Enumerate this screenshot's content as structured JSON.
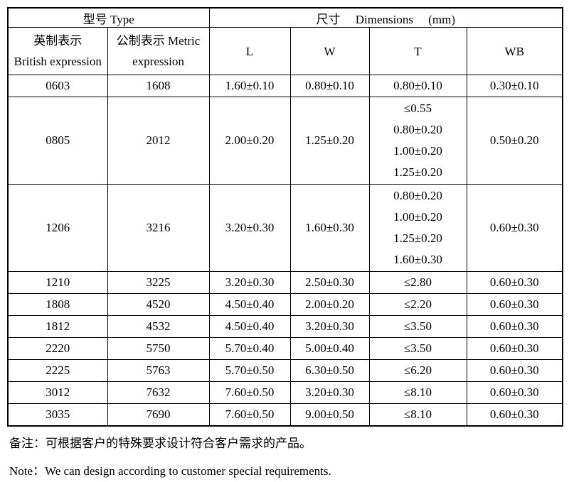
{
  "table": {
    "header": {
      "type_label": "型号 Type",
      "dimensions_label": "尺寸     Dimensions     (mm)",
      "col_british": "英制表示\nBritish expression",
      "col_metric": "公制表示 Metric\nexpression",
      "col_l": "L",
      "col_w": "W",
      "col_t": "T",
      "col_wb": "WB"
    },
    "rows": [
      {
        "british": "0603",
        "metric": "1608",
        "l": "1.60±0.10",
        "w": "0.80±0.10",
        "t": [
          "0.80±0.10"
        ],
        "wb": "0.30±0.10"
      },
      {
        "british": "0805",
        "metric": "2012",
        "l": "2.00±0.20",
        "w": "1.25±0.20",
        "t": [
          "≤0.55",
          "0.80±0.20",
          "1.00±0.20",
          "1.25±0.20"
        ],
        "wb": "0.50±0.20"
      },
      {
        "british": "1206",
        "metric": "3216",
        "l": "3.20±0.30",
        "w": "1.60±0.30",
        "t": [
          "0.80±0.20",
          "1.00±0.20",
          "1.25±0.20",
          "1.60±0.30"
        ],
        "wb": "0.60±0.30"
      },
      {
        "british": "1210",
        "metric": "3225",
        "l": "3.20±0.30",
        "w": "2.50±0.30",
        "t": [
          "≤2.80"
        ],
        "wb": "0.60±0.30"
      },
      {
        "british": "1808",
        "metric": "4520",
        "l": "4.50±0.40",
        "w": "2.00±0.20",
        "t": [
          "≤2.20"
        ],
        "wb": "0.60±0.30"
      },
      {
        "british": "1812",
        "metric": "4532",
        "l": "4.50±0.40",
        "w": "3.20±0.30",
        "t": [
          "≤3.50"
        ],
        "wb": "0.60±0.30"
      },
      {
        "british": "2220",
        "metric": "5750",
        "l": "5.70±0.40",
        "w": "5.00±0.40",
        "t": [
          "≤3.50"
        ],
        "wb": "0.60±0.30"
      },
      {
        "british": "2225",
        "metric": "5763",
        "l": "5.70±0.50",
        "w": "6.30±0.50",
        "t": [
          "≤6.20"
        ],
        "wb": "0.60±0.30"
      },
      {
        "british": "3012",
        "metric": "7632",
        "l": "7.60±0.50",
        "w": "3.20±0.30",
        "t": [
          "≤8.10"
        ],
        "wb": "0.60±0.30"
      },
      {
        "british": "3035",
        "metric": "7690",
        "l": "7.60±0.50",
        "w": "9.00±0.50",
        "t": [
          "≤8.10"
        ],
        "wb": "0.60±0.30"
      }
    ]
  },
  "notes": {
    "zh": "备注：可根据客户的特殊要求设计符合客户需求的产品。",
    "en": "Note：We can design according to customer special requirements."
  },
  "colors": {
    "border": "#000000",
    "text": "#000000",
    "background": "#ffffff"
  }
}
